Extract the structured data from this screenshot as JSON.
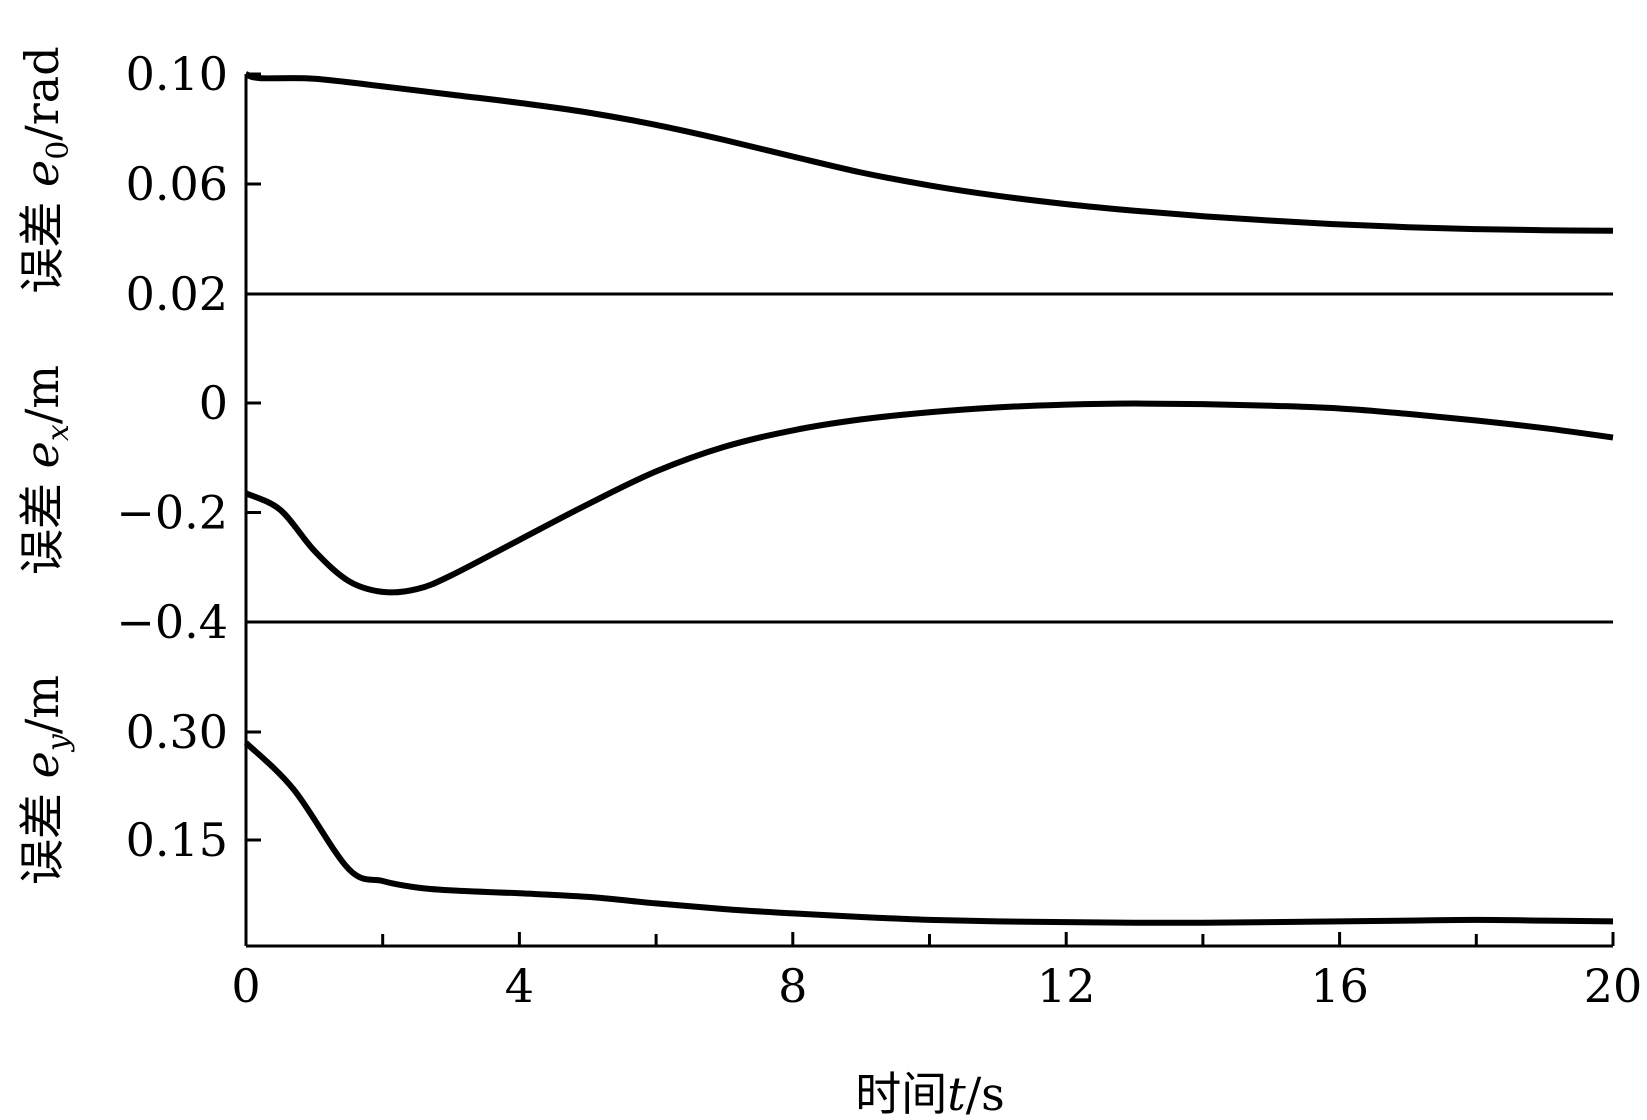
{
  "chart_data": {
    "type": "line",
    "x_axis": {
      "label_prefix": "时间",
      "label_var": "t",
      "label_unit": "/s",
      "ticks": [
        0,
        4,
        8,
        12,
        16,
        20
      ],
      "tick_labels": [
        "0",
        "4",
        "8",
        "12",
        "16",
        "20"
      ],
      "range": [
        0,
        20
      ]
    },
    "panels": [
      {
        "id": "e0",
        "ylabel_prefix": "误差 ",
        "ylabel_var": "e",
        "ylabel_sub": "0",
        "ylabel_unit": "/rad",
        "ylim": [
          0.02,
          0.1
        ],
        "yticks": [
          0.1,
          0.06,
          0.02
        ],
        "ytick_labels": [
          "0.10",
          "0.06",
          "0.02"
        ],
        "x": [
          0,
          0.2,
          1.0,
          2,
          3,
          4,
          5,
          6,
          7,
          8,
          9,
          10,
          11,
          12,
          13,
          14,
          15,
          16,
          17,
          18,
          19,
          20
        ],
        "y": [
          0.1,
          0.0985,
          0.0983,
          0.0955,
          0.0925,
          0.0895,
          0.086,
          0.0815,
          0.076,
          0.07,
          0.0642,
          0.0595,
          0.0557,
          0.0527,
          0.0503,
          0.0483,
          0.0467,
          0.0453,
          0.0443,
          0.0436,
          0.0432,
          0.043
        ]
      },
      {
        "id": "ex",
        "ylabel_prefix": "误差 ",
        "ylabel_var": "e",
        "ylabel_sub": "x",
        "ylabel_unit": "/m",
        "ylim": [
          -0.4,
          0
        ],
        "yticks": [
          0,
          -0.2,
          -0.4
        ],
        "ytick_labels": [
          "0",
          "−0.2",
          "−0.4"
        ],
        "x": [
          0,
          0.5,
          1,
          1.5,
          2,
          2.5,
          3,
          4,
          5,
          6,
          7,
          8,
          9,
          10,
          11,
          12,
          13,
          14,
          15,
          16,
          17,
          18,
          19,
          20
        ],
        "y": [
          -0.165,
          -0.195,
          -0.27,
          -0.325,
          -0.345,
          -0.34,
          -0.315,
          -0.25,
          -0.185,
          -0.125,
          -0.08,
          -0.05,
          -0.03,
          -0.017,
          -0.008,
          -0.003,
          -0.001,
          -0.002,
          -0.005,
          -0.01,
          -0.02,
          -0.032,
          -0.046,
          -0.063
        ]
      },
      {
        "id": "ey",
        "ylabel_prefix": "误差 ",
        "ylabel_var": "e",
        "ylabel_sub": "y",
        "ylabel_unit": "/m",
        "ylim": [
          0,
          0.3
        ],
        "yticks": [
          0.3,
          0.15
        ],
        "ytick_labels": [
          "0.30",
          "0.15"
        ],
        "x": [
          0,
          0.7,
          1.5,
          2,
          2.5,
          3,
          4,
          5,
          6,
          7,
          8,
          9,
          10,
          11,
          12,
          13,
          14,
          15,
          16,
          17,
          18,
          19,
          20
        ],
        "y": [
          0.285,
          0.22,
          0.11,
          0.093,
          0.084,
          0.08,
          0.076,
          0.071,
          0.062,
          0.054,
          0.048,
          0.043,
          0.039,
          0.037,
          0.036,
          0.035,
          0.035,
          0.036,
          0.037,
          0.038,
          0.039,
          0.038,
          0.037
        ]
      }
    ]
  }
}
